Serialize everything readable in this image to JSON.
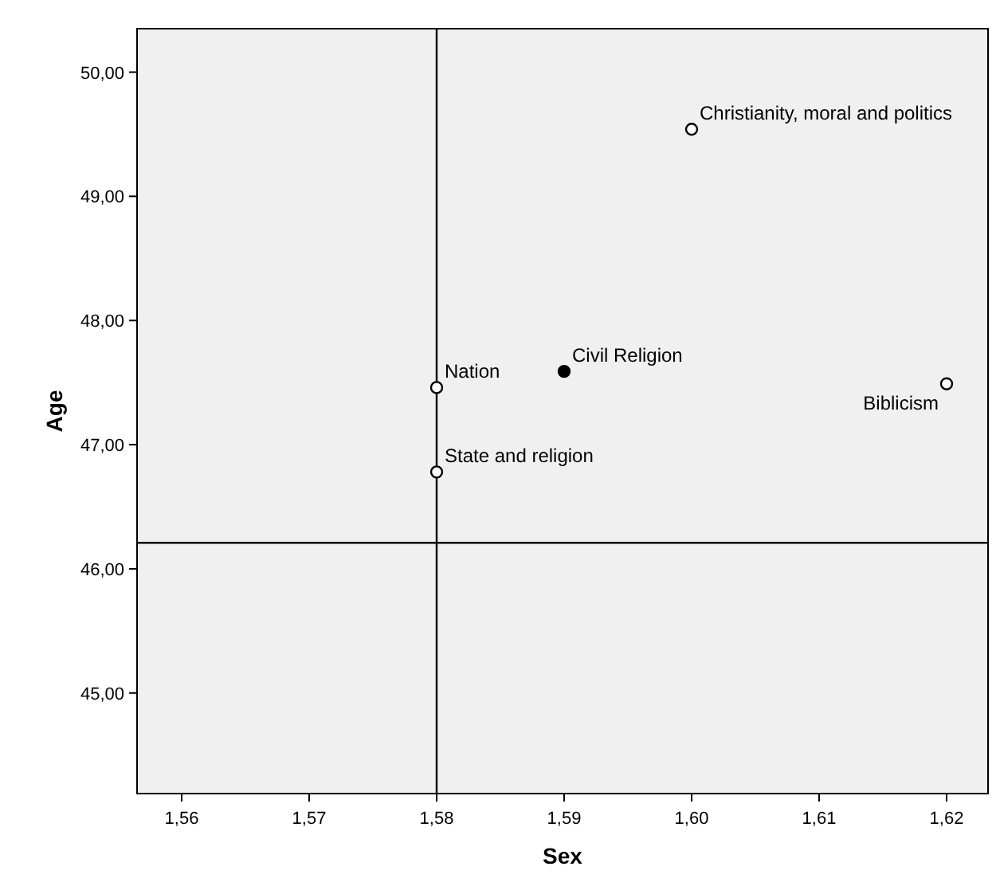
{
  "chart_data": {
    "type": "scatter",
    "xlabel": "Sex",
    "ylabel": "Age",
    "x": [
      1.58,
      1.59,
      1.6,
      1.58,
      1.62
    ],
    "values": [
      46.78,
      47.59,
      49.54,
      47.46,
      47.49
    ],
    "colors": [
      "#ffffff",
      "#000000",
      "#ffffff",
      "#ffffff",
      "#ffffff"
    ],
    "marker": "circle",
    "xlim": [
      1.5565,
      1.62325
    ],
    "ylim": [
      44.19,
      50.35
    ],
    "xticks": [
      {
        "value": 1.56,
        "label": "1,56"
      },
      {
        "value": 1.57,
        "label": "1,57"
      },
      {
        "value": 1.58,
        "label": "1,58"
      },
      {
        "value": 1.59,
        "label": "1,59"
      },
      {
        "value": 1.6,
        "label": "1,60"
      },
      {
        "value": 1.61,
        "label": "1,61"
      },
      {
        "value": 1.62,
        "label": "1,62"
      }
    ],
    "yticks": [
      {
        "value": 45,
        "label": "45,00"
      },
      {
        "value": 46,
        "label": "46,00"
      },
      {
        "value": 47,
        "label": "47,00"
      },
      {
        "value": 48,
        "label": "48,00"
      },
      {
        "value": 49,
        "label": "49,00"
      },
      {
        "value": 50,
        "label": "50,00"
      }
    ],
    "ref_lines": [
      {
        "axis": "x",
        "value": 1.58,
        "color": "#000000"
      },
      {
        "axis": "y",
        "value": 46.21,
        "color": "#000000"
      }
    ],
    "annotations": [
      {
        "text": "State and religion",
        "x": 1.58,
        "y": 46.78
      },
      {
        "text": "Civil Religion",
        "x": 1.59,
        "y": 47.59
      },
      {
        "text": "Christianity, moral and politics",
        "x": 1.6,
        "y": 49.54
      },
      {
        "text": "Nation",
        "x": 1.58,
        "y": 47.46
      },
      {
        "text": "Biblicism",
        "x": 1.62,
        "y": 47.49
      }
    ],
    "grid": false
  }
}
